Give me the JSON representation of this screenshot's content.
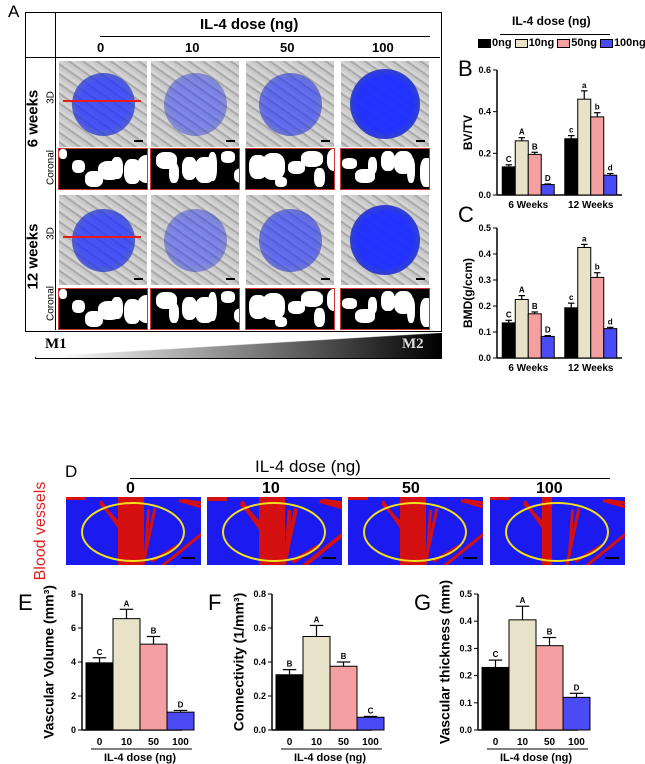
{
  "panel_a": {
    "letter": "A",
    "dose_title": "IL-4 dose (ng)",
    "doses": [
      "0",
      "10",
      "50",
      "100"
    ],
    "rows": [
      {
        "group": "6 weeks",
        "sub3d": "3D",
        "subcor": "Coronal"
      },
      {
        "group": "12 weeks",
        "sub3d": "3D",
        "subcor": "Coronal"
      }
    ],
    "gradient_left": "M1",
    "gradient_right": "M2"
  },
  "legend": {
    "title": "IL-4 dose (ng)",
    "items": [
      {
        "label": "0ng",
        "color": "#000000"
      },
      {
        "label": "10ng",
        "color": "#e8e2c8"
      },
      {
        "label": "50ng",
        "color": "#f4a0a0"
      },
      {
        "label": "100ng",
        "color": "#4b4bf5"
      }
    ]
  },
  "panel_d": {
    "letter": "D",
    "dose_title": "IL-4 dose (ng)",
    "doses": [
      "0",
      "10",
      "50",
      "100"
    ],
    "row_label": "Blood vessels"
  },
  "chart_data": [
    {
      "id": "B",
      "letter": "B",
      "type": "bar",
      "categories": [
        "6 Weeks",
        "12 Weeks"
      ],
      "ylabel": "BV/TV",
      "ylim": [
        0,
        0.6
      ],
      "yticks": [
        "0.0",
        "0.2",
        "0.4",
        "0.6"
      ],
      "series": [
        {
          "name": "0ng",
          "values": [
            0.135,
            0.27
          ],
          "errors": [
            0.01,
            0.015
          ],
          "sig": [
            "C",
            "c"
          ]
        },
        {
          "name": "10ng",
          "values": [
            0.26,
            0.46
          ],
          "errors": [
            0.015,
            0.04
          ],
          "sig": [
            "A",
            "a"
          ]
        },
        {
          "name": "50ng",
          "values": [
            0.195,
            0.375
          ],
          "errors": [
            0.01,
            0.02
          ],
          "sig": [
            "B",
            "b"
          ]
        },
        {
          "name": "100ng",
          "values": [
            0.05,
            0.095
          ],
          "errors": [
            0.003,
            0.008
          ],
          "sig": [
            "D",
            "d"
          ]
        }
      ]
    },
    {
      "id": "C",
      "letter": "C",
      "type": "bar",
      "categories": [
        "6 Weeks",
        "12 Weeks"
      ],
      "ylabel": "BMD(g/ccm)",
      "ylim": [
        0,
        0.5
      ],
      "yticks": [
        "0.0",
        "0.1",
        "0.2",
        "0.3",
        "0.4",
        "0.5"
      ],
      "series": [
        {
          "name": "0ng",
          "values": [
            0.135,
            0.193
          ],
          "errors": [
            0.01,
            0.018
          ],
          "sig": [
            "C",
            "c"
          ]
        },
        {
          "name": "10ng",
          "values": [
            0.225,
            0.425
          ],
          "errors": [
            0.015,
            0.012
          ],
          "sig": [
            "A",
            "a"
          ]
        },
        {
          "name": "50ng",
          "values": [
            0.17,
            0.31
          ],
          "errors": [
            0.007,
            0.018
          ],
          "sig": [
            "B",
            "b"
          ]
        },
        {
          "name": "100ng",
          "values": [
            0.083,
            0.113
          ],
          "errors": [
            0.003,
            0.005
          ],
          "sig": [
            "D",
            "d"
          ]
        }
      ]
    },
    {
      "id": "E",
      "letter": "E",
      "type": "bar",
      "categories": [
        "0",
        "10",
        "50",
        "100"
      ],
      "xlabel": "IL-4 dose (ng)",
      "ylabel": "Vascular Volume (mm³)",
      "ylim": [
        0,
        8
      ],
      "yticks": [
        "0",
        "2",
        "4",
        "6",
        "8"
      ],
      "values": [
        3.95,
        6.55,
        5.05,
        1.05
      ],
      "errors": [
        0.3,
        0.55,
        0.45,
        0.1
      ],
      "sig": [
        "C",
        "A",
        "B",
        "D"
      ]
    },
    {
      "id": "F",
      "letter": "F",
      "type": "bar",
      "categories": [
        "0",
        "10",
        "50",
        "100"
      ],
      "xlabel": "IL-4 dose (ng)",
      "ylabel": "Connectivity (1/mm³)",
      "ylim": [
        0,
        0.8
      ],
      "yticks": [
        "0.0",
        "0.2",
        "0.4",
        "0.6",
        "0.8"
      ],
      "values": [
        0.325,
        0.55,
        0.375,
        0.075
      ],
      "errors": [
        0.03,
        0.065,
        0.025,
        0.005
      ],
      "sig": [
        "B",
        "A",
        "B",
        "C"
      ]
    },
    {
      "id": "G",
      "letter": "G",
      "type": "bar",
      "categories": [
        "0",
        "10",
        "50",
        "100"
      ],
      "xlabel": "IL-4 dose (ng)",
      "ylabel": "Vascular thickness (mm)",
      "ylim": [
        0,
        0.5
      ],
      "yticks": [
        "0.0",
        "0.1",
        "0.2",
        "0.3",
        "0.4",
        "0.5"
      ],
      "values": [
        0.23,
        0.405,
        0.31,
        0.12
      ],
      "errors": [
        0.027,
        0.05,
        0.03,
        0.015
      ],
      "sig": [
        "C",
        "A",
        "B",
        "D"
      ]
    }
  ]
}
